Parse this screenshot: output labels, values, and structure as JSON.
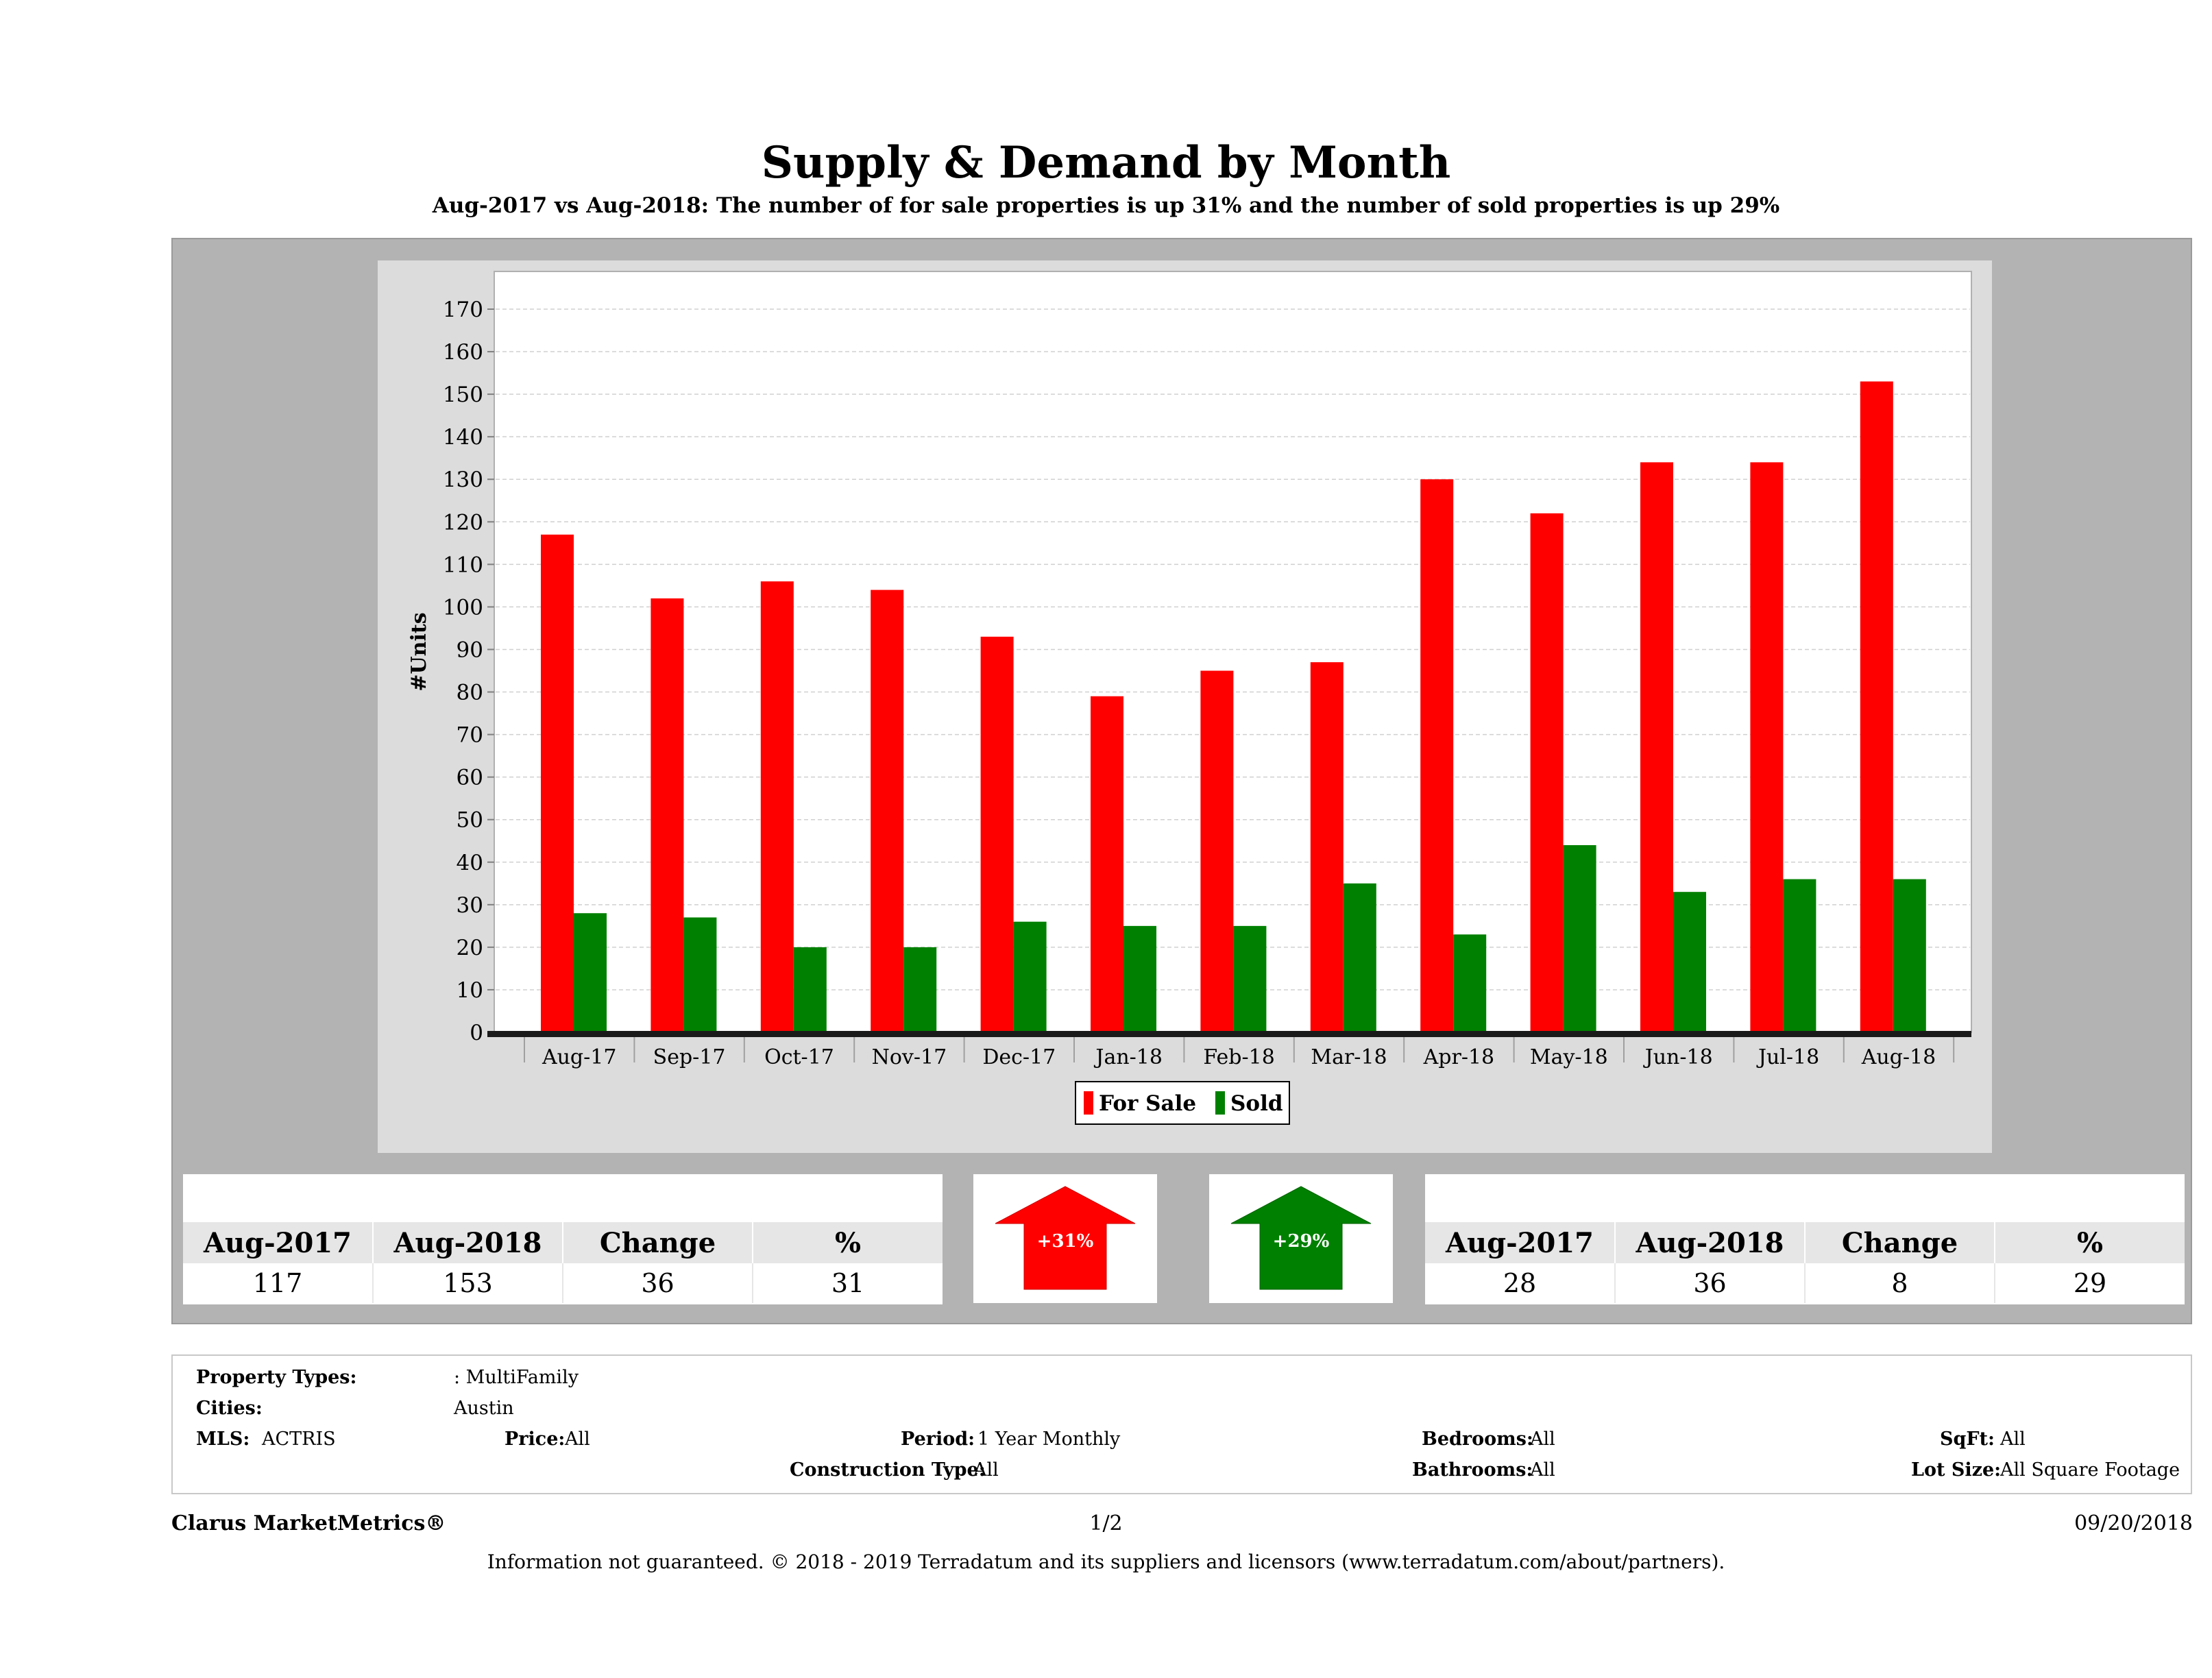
{
  "header": {
    "title": "Supply & Demand by Month",
    "subtitle": "Aug-2017 vs Aug-2018: The number of for sale properties is up 31% and the number of sold properties is up 29%"
  },
  "chart_data": {
    "type": "bar",
    "ylabel": "#Units",
    "xlabel": "",
    "ylim": [
      0,
      170
    ],
    "yticks": [
      0,
      10,
      20,
      30,
      40,
      50,
      60,
      70,
      80,
      90,
      100,
      110,
      120,
      130,
      140,
      150,
      160,
      170
    ],
    "grid": true,
    "legend_position": "bottom",
    "categories": [
      "Aug-17",
      "Sep-17",
      "Oct-17",
      "Nov-17",
      "Dec-17",
      "Jan-18",
      "Feb-18",
      "Mar-18",
      "Apr-18",
      "May-18",
      "Jun-18",
      "Jul-18",
      "Aug-18"
    ],
    "series": [
      {
        "name": "For Sale",
        "color": "#ff0000",
        "values": [
          117,
          102,
          106,
          104,
          93,
          79,
          85,
          87,
          130,
          122,
          134,
          134,
          153
        ]
      },
      {
        "name": "Sold",
        "color": "#008000",
        "values": [
          28,
          27,
          20,
          20,
          26,
          25,
          25,
          35,
          23,
          44,
          33,
          36,
          36
        ]
      }
    ]
  },
  "for_sale_stats": {
    "headers": [
      "Aug-2017",
      "Aug-2018",
      "Change",
      "%"
    ],
    "values": [
      "117",
      "153",
      "36",
      "31"
    ]
  },
  "sold_stats": {
    "headers": [
      "Aug-2017",
      "Aug-2018",
      "Change",
      "%"
    ],
    "values": [
      "28",
      "36",
      "8",
      "29"
    ]
  },
  "arrows": {
    "for_sale": {
      "label": "+31%",
      "color": "#ff0000",
      "direction": "up"
    },
    "sold": {
      "label": "+29%",
      "color": "#008000",
      "direction": "up"
    }
  },
  "criteria": {
    "property_types_label": "Property Types:",
    "property_types_value": ": MultiFamily",
    "cities_label": "Cities:",
    "cities_value": "Austin",
    "mls_label": "MLS:",
    "mls_value": "ACTRIS",
    "price_label": "Price:",
    "price_value": "All",
    "period_label": "Period:",
    "period_value": "1 Year Monthly",
    "construction_label": "Construction Type:",
    "construction_value": "All",
    "bedrooms_label": "Bedrooms:",
    "bedrooms_value": "All",
    "bathrooms_label": "Bathrooms:",
    "bathrooms_value": "All",
    "sqft_label": "SqFt:",
    "sqft_value": "All",
    "lotsize_label": "Lot Size:",
    "lotsize_value": "All Square Footage"
  },
  "footer": {
    "brand": "Clarus MarketMetrics®",
    "page": "1/2",
    "date": "09/20/2018",
    "disclaimer": "Information not guaranteed. © 2018 - 2019 Terradatum and its suppliers and licensors (www.terradatum.com/about/partners)."
  }
}
